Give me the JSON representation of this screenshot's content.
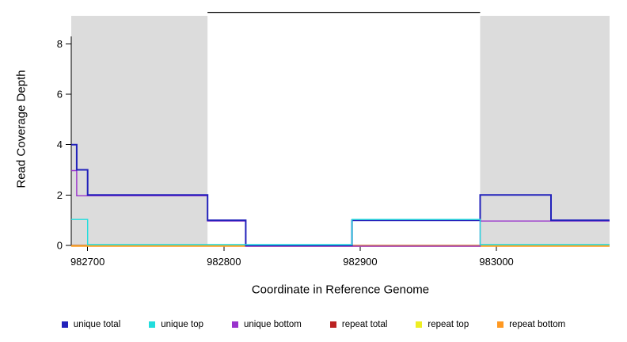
{
  "chart_data": {
    "type": "line",
    "subtype": "step-coverage",
    "title": "",
    "xlabel": "Coordinate in Reference Genome",
    "ylabel": "Read Coverage Depth",
    "xlim": [
      982688,
      983083
    ],
    "ylim": [
      0,
      9.3
    ],
    "x_ticks": [
      982700,
      982800,
      982900,
      983000
    ],
    "y_ticks": [
      0,
      2,
      4,
      6,
      8
    ],
    "grid": false,
    "legend_position": "bottom",
    "shaded_regions": [
      {
        "x0": 982688,
        "x1": 982788,
        "color": "#dcdcdc",
        "meaning": "repeat region shading"
      },
      {
        "x0": 982988,
        "x1": 983083,
        "color": "#dcdcdc",
        "meaning": "repeat region shading"
      }
    ],
    "top_line": {
      "x0": 982788,
      "x1": 982988,
      "y": 9.25,
      "color": "#000000"
    },
    "series": [
      {
        "id": "repeat-total",
        "name": "repeat total",
        "color": "#bb2222",
        "steps": [
          [
            982688,
            0
          ]
        ]
      },
      {
        "id": "repeat-top",
        "name": "repeat top",
        "color": "#eeee22",
        "steps": [
          [
            982688,
            0
          ]
        ]
      },
      {
        "id": "repeat-bottom",
        "name": "repeat bottom",
        "color": "#ff9922",
        "steps": [
          [
            982688,
            0
          ]
        ]
      },
      {
        "id": "unique-bottom",
        "name": "unique bottom",
        "color": "#9933cc",
        "steps": [
          [
            982688,
            3
          ],
          [
            982692,
            2
          ],
          [
            982788,
            1
          ],
          [
            982816,
            0
          ],
          [
            982988,
            1
          ]
        ]
      },
      {
        "id": "unique-total",
        "name": "unique total",
        "color": "#2222bb",
        "steps": [
          [
            982688,
            4
          ],
          [
            982692,
            3
          ],
          [
            982700,
            2
          ],
          [
            982788,
            1
          ],
          [
            982816,
            0
          ],
          [
            982894,
            1
          ],
          [
            982988,
            2
          ],
          [
            983040,
            1
          ]
        ]
      },
      {
        "id": "unique-top",
        "name": "unique top",
        "color": "#22dddd",
        "steps": [
          [
            982688,
            1
          ],
          [
            982700,
            0
          ],
          [
            982894,
            1
          ],
          [
            982988,
            0
          ]
        ]
      }
    ],
    "legend": [
      {
        "label": "unique total",
        "color": "#2222bb"
      },
      {
        "label": "unique top",
        "color": "#22dddd"
      },
      {
        "label": "unique bottom",
        "color": "#9933cc"
      },
      {
        "label": "repeat total",
        "color": "#bb2222"
      },
      {
        "label": "repeat top",
        "color": "#eeee22"
      },
      {
        "label": "repeat bottom",
        "color": "#ff9922"
      }
    ]
  }
}
